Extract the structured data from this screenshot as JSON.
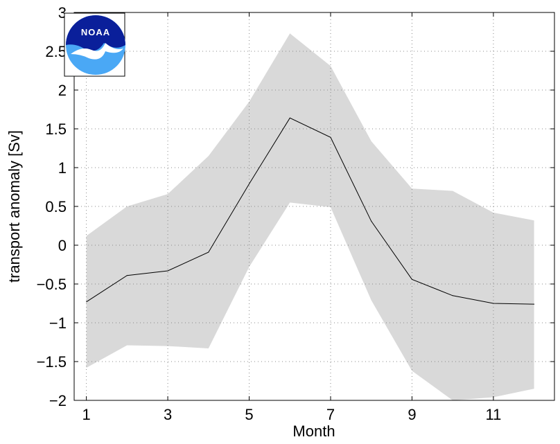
{
  "chart_data": {
    "type": "area",
    "title": "",
    "xlabel": "Month",
    "ylabel": "transport anomaly [Sv]",
    "xlim": [
      0.7,
      12.5
    ],
    "ylim": [
      -2,
      3
    ],
    "x_ticks": [
      1,
      3,
      5,
      7,
      9,
      11
    ],
    "x_tick_labels": [
      "1",
      "3",
      "5",
      "7",
      "9",
      "11"
    ],
    "y_ticks": [
      -2,
      -1.5,
      -1,
      -0.5,
      0,
      0.5,
      1,
      1.5,
      2,
      2.5,
      3
    ],
    "y_tick_labels": [
      "−2",
      "−1.5",
      "−1",
      "−0.5",
      "0",
      "0.5",
      "1",
      "1.5",
      "2",
      "2.5",
      "3"
    ],
    "grid": true,
    "x": [
      1,
      2,
      3,
      4,
      5,
      6,
      7,
      8,
      9,
      10,
      11,
      12
    ],
    "series": [
      {
        "values": [
          -0.73,
          -0.39,
          -0.33,
          -0.09,
          0.79,
          1.64,
          1.39,
          0.31,
          -0.44,
          -0.65,
          -0.75,
          -0.76
        ],
        "color": "#000000"
      }
    ],
    "band": {
      "upper": [
        0.12,
        0.5,
        0.66,
        1.15,
        1.85,
        2.73,
        2.31,
        1.34,
        0.73,
        0.7,
        0.42,
        0.32
      ],
      "lower": [
        -1.58,
        -1.29,
        -1.3,
        -1.33,
        -0.28,
        0.55,
        0.49,
        -0.71,
        -1.62,
        -2.0,
        -1.96,
        -1.85
      ],
      "color": "#d9d9d9"
    }
  },
  "logo": {
    "text": "NOAA",
    "colors": {
      "dark_blue": "#0a1f9a",
      "light_blue": "#4aa8f5",
      "white": "#ffffff"
    }
  }
}
